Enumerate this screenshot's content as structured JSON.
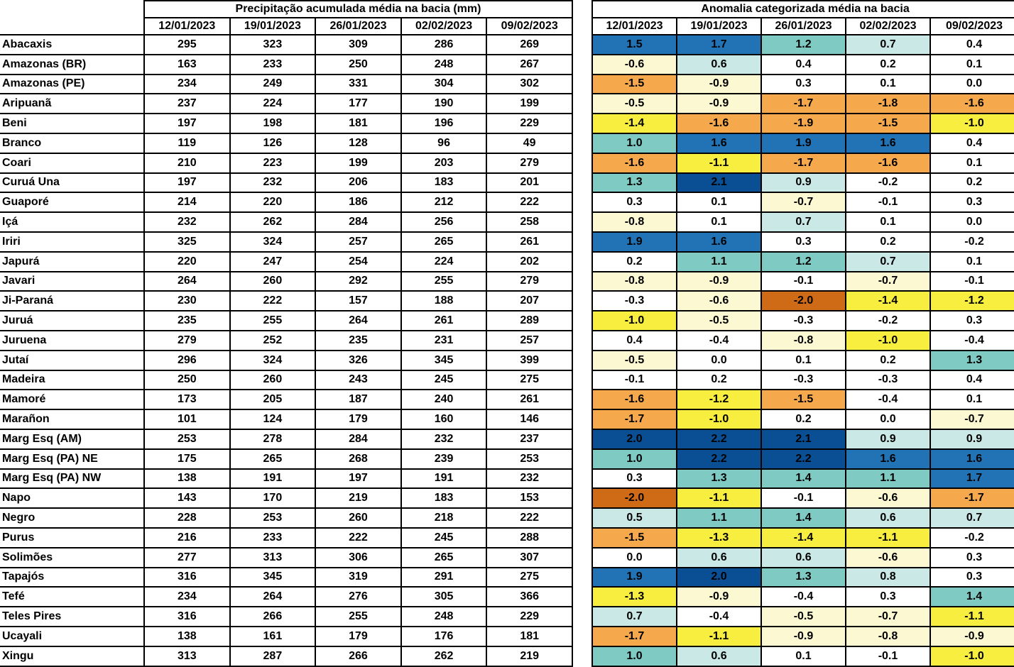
{
  "chart_data": [
    {
      "type": "table",
      "title": "Precipitação acumulada média na bacia (mm)",
      "columns": [
        "12/01/2023",
        "19/01/2023",
        "26/01/2023",
        "02/02/2023",
        "09/02/2023"
      ],
      "row_labels": [
        "Abacaxis",
        "Amazonas (BR)",
        "Amazonas (PE)",
        "Aripuanã",
        "Beni",
        "Branco",
        "Coari",
        "Curuá Una",
        "Guaporé",
        "Içá",
        "Iriri",
        "Japurá",
        "Javari",
        "Ji-Paraná",
        "Juruá",
        "Juruena",
        "Jutaí",
        "Madeira",
        "Mamoré",
        "Marañon",
        "Marg Esq (AM)",
        "Marg Esq (PA) NE",
        "Marg Esq (PA) NW",
        "Napo",
        "Negro",
        "Purus",
        "Solimões",
        "Tapajós",
        "Tefé",
        "Teles Pires",
        "Ucayali",
        "Xingu"
      ],
      "values": [
        [
          295,
          323,
          309,
          286,
          269
        ],
        [
          163,
          233,
          250,
          248,
          267
        ],
        [
          234,
          249,
          331,
          304,
          302
        ],
        [
          237,
          224,
          177,
          190,
          199
        ],
        [
          197,
          198,
          181,
          196,
          229
        ],
        [
          119,
          126,
          128,
          96,
          49
        ],
        [
          210,
          223,
          199,
          203,
          279
        ],
        [
          197,
          232,
          206,
          183,
          201
        ],
        [
          214,
          220,
          186,
          212,
          222
        ],
        [
          232,
          262,
          284,
          256,
          258
        ],
        [
          325,
          324,
          257,
          265,
          261
        ],
        [
          220,
          247,
          254,
          224,
          202
        ],
        [
          264,
          260,
          292,
          255,
          279
        ],
        [
          230,
          222,
          157,
          188,
          207
        ],
        [
          235,
          255,
          264,
          261,
          289
        ],
        [
          279,
          252,
          235,
          231,
          257
        ],
        [
          296,
          324,
          326,
          345,
          399
        ],
        [
          250,
          260,
          243,
          245,
          275
        ],
        [
          173,
          205,
          187,
          240,
          261
        ],
        [
          101,
          124,
          179,
          160,
          146
        ],
        [
          253,
          278,
          284,
          232,
          237
        ],
        [
          175,
          265,
          268,
          239,
          253
        ],
        [
          138,
          191,
          197,
          191,
          232
        ],
        [
          143,
          170,
          219,
          183,
          153
        ],
        [
          228,
          253,
          260,
          218,
          222
        ],
        [
          216,
          233,
          222,
          245,
          288
        ],
        [
          277,
          313,
          306,
          265,
          307
        ],
        [
          316,
          345,
          319,
          291,
          275
        ],
        [
          234,
          264,
          276,
          305,
          366
        ],
        [
          316,
          266,
          255,
          248,
          229
        ],
        [
          138,
          161,
          179,
          176,
          181
        ],
        [
          313,
          287,
          266,
          262,
          219
        ]
      ]
    },
    {
      "type": "heatmap",
      "title": "Anomalia categorizada média na bacia",
      "columns": [
        "12/01/2023",
        "19/01/2023",
        "26/01/2023",
        "02/02/2023",
        "09/02/2023"
      ],
      "row_labels": [
        "Abacaxis",
        "Amazonas (BR)",
        "Amazonas (PE)",
        "Aripuanã",
        "Beni",
        "Branco",
        "Coari",
        "Curuá Una",
        "Guaporé",
        "Içá",
        "Iriri",
        "Japurá",
        "Javari",
        "Ji-Paraná",
        "Juruá",
        "Juruena",
        "Jutaí",
        "Madeira",
        "Mamoré",
        "Marañon",
        "Marg Esq (AM)",
        "Marg Esq (PA) NE",
        "Marg Esq (PA) NW",
        "Napo",
        "Negro",
        "Purus",
        "Solimões",
        "Tapajós",
        "Tefé",
        "Teles Pires",
        "Ucayali",
        "Xingu"
      ],
      "values": [
        [
          1.5,
          1.7,
          1.2,
          0.7,
          0.4
        ],
        [
          -0.6,
          0.6,
          0.4,
          0.2,
          0.1
        ],
        [
          -1.5,
          -0.9,
          0.3,
          0.1,
          0.0
        ],
        [
          -0.5,
          -0.9,
          -1.7,
          -1.8,
          -1.6
        ],
        [
          -1.4,
          -1.6,
          -1.9,
          -1.5,
          -1.0
        ],
        [
          1.0,
          1.6,
          1.9,
          1.6,
          0.4
        ],
        [
          -1.6,
          -1.1,
          -1.7,
          -1.6,
          0.1
        ],
        [
          1.3,
          2.1,
          0.9,
          -0.2,
          0.2
        ],
        [
          0.3,
          0.1,
          -0.7,
          -0.1,
          0.3
        ],
        [
          -0.8,
          0.1,
          0.7,
          0.1,
          0.0
        ],
        [
          1.9,
          1.6,
          0.3,
          0.2,
          -0.2
        ],
        [
          0.2,
          1.1,
          1.2,
          0.7,
          0.1
        ],
        [
          -0.8,
          -0.9,
          -0.1,
          -0.7,
          -0.1
        ],
        [
          -0.3,
          -0.6,
          -2.0,
          -1.4,
          -1.2
        ],
        [
          -1.0,
          -0.5,
          -0.3,
          -0.2,
          0.3
        ],
        [
          0.4,
          -0.4,
          -0.8,
          -1.0,
          -0.4
        ],
        [
          -0.5,
          0.0,
          0.1,
          0.2,
          1.3
        ],
        [
          -0.1,
          0.2,
          -0.3,
          -0.3,
          0.4
        ],
        [
          -1.6,
          -1.2,
          -1.5,
          -0.4,
          0.1
        ],
        [
          -1.7,
          -1.0,
          0.2,
          0.0,
          -0.7
        ],
        [
          2.0,
          2.2,
          2.1,
          0.9,
          0.9
        ],
        [
          1.0,
          2.2,
          2.2,
          1.6,
          1.6
        ],
        [
          0.3,
          1.3,
          1.4,
          1.1,
          1.7
        ],
        [
          -2.0,
          -1.1,
          -0.1,
          -0.6,
          -1.7
        ],
        [
          0.5,
          1.1,
          1.4,
          0.6,
          0.7
        ],
        [
          -1.5,
          -1.3,
          -1.4,
          -1.1,
          -0.2
        ],
        [
          0.0,
          0.6,
          0.6,
          -0.6,
          0.3
        ],
        [
          1.9,
          2.0,
          1.3,
          0.8,
          0.3
        ],
        [
          -1.3,
          -0.9,
          -0.4,
          0.3,
          1.4
        ],
        [
          0.7,
          -0.4,
          -0.5,
          -0.7,
          -1.1
        ],
        [
          -1.7,
          -1.1,
          -0.9,
          -0.8,
          -0.9
        ],
        [
          1.0,
          0.6,
          0.1,
          -0.1,
          -1.0
        ]
      ],
      "color_scale": [
        {
          "min": 2.0,
          "color": "#0a4f94"
        },
        {
          "min": 1.5,
          "color": "#2272b6"
        },
        {
          "min": 1.0,
          "color": "#7fcbc4"
        },
        {
          "min": 0.5,
          "color": "#c9e8e6"
        },
        {
          "min": -0.45,
          "color": "#ffffff"
        },
        {
          "min": -0.95,
          "color": "#fcf8d2"
        },
        {
          "min": -1.45,
          "color": "#f7ee3f"
        },
        {
          "min": -1.95,
          "color": "#f5a94c"
        },
        {
          "min": -999,
          "color": "#cf6b17"
        }
      ]
    }
  ]
}
